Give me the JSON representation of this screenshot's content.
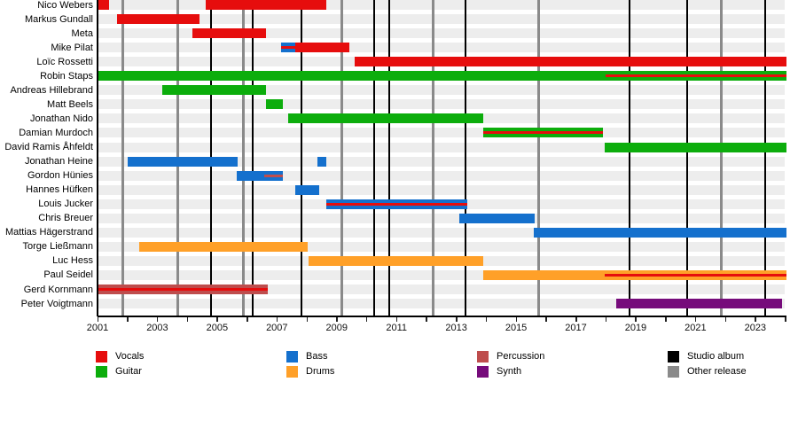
{
  "chart_data": {
    "type": "timeline",
    "description": "Band members timeline (Gantt-style) with instrument roles and release markers",
    "x_axis": {
      "start": 2001,
      "end": 2024.1,
      "tick_label_years": [
        2001,
        2003,
        2005,
        2007,
        2009,
        2011,
        2013,
        2015,
        2017,
        2019,
        2021,
        2023
      ],
      "tick_labels": [
        "2001",
        "2003",
        "2005",
        "2007",
        "2009",
        "2011",
        "2013",
        "2015",
        "2017",
        "2019",
        "2021",
        "2023"
      ],
      "minor_tick_step": 1
    },
    "colors": {
      "vocals": "#e60d0d",
      "guitar": "#0cad0c",
      "bass": "#1470cd",
      "drums": "#ffa028",
      "percussion": "#be4d4d",
      "synth": "#760b7b",
      "studio_album": "#000000",
      "other_release": "#8a8a8a"
    },
    "members": [
      {
        "name": "Nico Webers",
        "bars": [
          {
            "role": "vocals",
            "start": 2001.0,
            "end": 2001.39
          },
          {
            "role": "vocals",
            "start": 2004.62,
            "end": 2008.65
          }
        ],
        "stripes": []
      },
      {
        "name": "Markus Gundall",
        "bars": [
          {
            "role": "vocals",
            "start": 2001.65,
            "end": 2004.41
          }
        ],
        "stripes": []
      },
      {
        "name": "Meta",
        "bars": [
          {
            "role": "vocals",
            "start": 2004.17,
            "end": 2006.63
          }
        ],
        "stripes": []
      },
      {
        "name": "Mike Pilat",
        "bars": [
          {
            "role": "bass",
            "start": 2007.14,
            "end": 2007.61
          },
          {
            "role": "vocals",
            "start": 2007.61,
            "end": 2009.42
          }
        ],
        "stripes": [
          {
            "role": "vocals",
            "start": 2007.14,
            "end": 2007.61
          }
        ]
      },
      {
        "name": "Loïc Rossetti",
        "bars": [
          {
            "role": "vocals",
            "start": 2009.6,
            "end": 2024.04
          }
        ],
        "stripes": []
      },
      {
        "name": "Robin Staps",
        "bars": [
          {
            "role": "guitar",
            "start": 2001.0,
            "end": 2024.04
          }
        ],
        "stripes": [
          {
            "role": "vocals",
            "start": 2018.0,
            "end": 2024.04
          }
        ]
      },
      {
        "name": "Andreas Hillebrand",
        "bars": [
          {
            "role": "guitar",
            "start": 2003.17,
            "end": 2006.63
          }
        ],
        "stripes": []
      },
      {
        "name": "Matt Beels",
        "bars": [
          {
            "role": "guitar",
            "start": 2006.63,
            "end": 2007.2
          }
        ],
        "stripes": []
      },
      {
        "name": "Jonathan Nido",
        "bars": [
          {
            "role": "guitar",
            "start": 2007.38,
            "end": 2013.9
          }
        ],
        "stripes": []
      },
      {
        "name": "Damian Murdoch",
        "bars": [
          {
            "role": "guitar",
            "start": 2013.9,
            "end": 2017.9
          }
        ],
        "stripes": [
          {
            "role": "vocals",
            "start": 2013.9,
            "end": 2017.9
          }
        ]
      },
      {
        "name": "David Ramis Åhfeldt",
        "bars": [
          {
            "role": "guitar",
            "start": 2017.96,
            "end": 2024.04
          }
        ],
        "stripes": []
      },
      {
        "name": "Jonathan Heine",
        "bars": [
          {
            "role": "bass",
            "start": 2002.0,
            "end": 2005.69
          },
          {
            "role": "bass",
            "start": 2008.35,
            "end": 2008.65
          }
        ],
        "stripes": []
      },
      {
        "name": "Gordon Hünies",
        "bars": [
          {
            "role": "bass",
            "start": 2005.66,
            "end": 2007.2
          }
        ],
        "stripes": [
          {
            "role": "percussion",
            "start": 2006.57,
            "end": 2007.2
          }
        ]
      },
      {
        "name": "Hannes Hüfken",
        "bars": [
          {
            "role": "bass",
            "start": 2007.61,
            "end": 2008.41
          }
        ],
        "stripes": []
      },
      {
        "name": "Louis Jucker",
        "bars": [
          {
            "role": "bass",
            "start": 2008.65,
            "end": 2013.37
          }
        ],
        "stripes": [
          {
            "role": "vocals",
            "start": 2008.65,
            "end": 2013.37
          }
        ]
      },
      {
        "name": "Chris Breuer",
        "bars": [
          {
            "role": "bass",
            "start": 2013.1,
            "end": 2015.62
          }
        ],
        "stripes": []
      },
      {
        "name": "Mattias Hägerstrand",
        "bars": [
          {
            "role": "bass",
            "start": 2015.59,
            "end": 2024.04
          }
        ],
        "stripes": []
      },
      {
        "name": "Torge Ließmann",
        "bars": [
          {
            "role": "drums",
            "start": 2002.39,
            "end": 2008.03
          }
        ],
        "stripes": []
      },
      {
        "name": "Luc Hess",
        "bars": [
          {
            "role": "drums",
            "start": 2008.06,
            "end": 2013.9
          }
        ],
        "stripes": []
      },
      {
        "name": "Paul Seidel",
        "bars": [
          {
            "role": "drums",
            "start": 2013.9,
            "end": 2024.04
          }
        ],
        "stripes": [
          {
            "role": "vocals",
            "start": 2017.96,
            "end": 2024.04
          }
        ]
      },
      {
        "name": "Gerd Kornmann",
        "bars": [
          {
            "role": "percussion",
            "start": 2001.0,
            "end": 2006.69
          }
        ],
        "stripes": [
          {
            "role": "vocals",
            "start": 2001.0,
            "end": 2006.69
          }
        ]
      },
      {
        "name": "Peter Voigtmann",
        "bars": [
          {
            "role": "synth",
            "start": 2018.35,
            "end": 2023.9
          }
        ],
        "stripes": []
      }
    ],
    "releases": [
      {
        "year": 2001.86,
        "type": "other_release"
      },
      {
        "year": 2003.67,
        "type": "other_release"
      },
      {
        "year": 2004.8,
        "type": "studio_album"
      },
      {
        "year": 2005.89,
        "type": "other_release"
      },
      {
        "year": 2006.19,
        "type": "studio_album"
      },
      {
        "year": 2007.82,
        "type": "studio_album"
      },
      {
        "year": 2009.18,
        "type": "other_release"
      },
      {
        "year": 2010.25,
        "type": "studio_album"
      },
      {
        "year": 2010.76,
        "type": "studio_album"
      },
      {
        "year": 2012.21,
        "type": "other_release"
      },
      {
        "year": 2013.31,
        "type": "studio_album"
      },
      {
        "year": 2015.74,
        "type": "other_release"
      },
      {
        "year": 2018.79,
        "type": "studio_album"
      },
      {
        "year": 2020.72,
        "type": "studio_album"
      },
      {
        "year": 2021.85,
        "type": "other_release"
      },
      {
        "year": 2023.33,
        "type": "studio_album"
      }
    ],
    "legend": {
      "columns": [
        {
          "items": [
            {
              "label": "Vocals",
              "role": "vocals"
            },
            {
              "label": "Guitar",
              "role": "guitar"
            }
          ]
        },
        {
          "items": [
            {
              "label": "Bass",
              "role": "bass"
            },
            {
              "label": "Drums",
              "role": "drums"
            }
          ]
        },
        {
          "items": [
            {
              "label": "Percussion",
              "role": "percussion"
            },
            {
              "label": "Synth",
              "role": "synth"
            }
          ]
        },
        {
          "items": [
            {
              "label": "Studio album",
              "role": "studio_album"
            },
            {
              "label": "Other release",
              "role": "other_release"
            }
          ]
        }
      ]
    }
  }
}
